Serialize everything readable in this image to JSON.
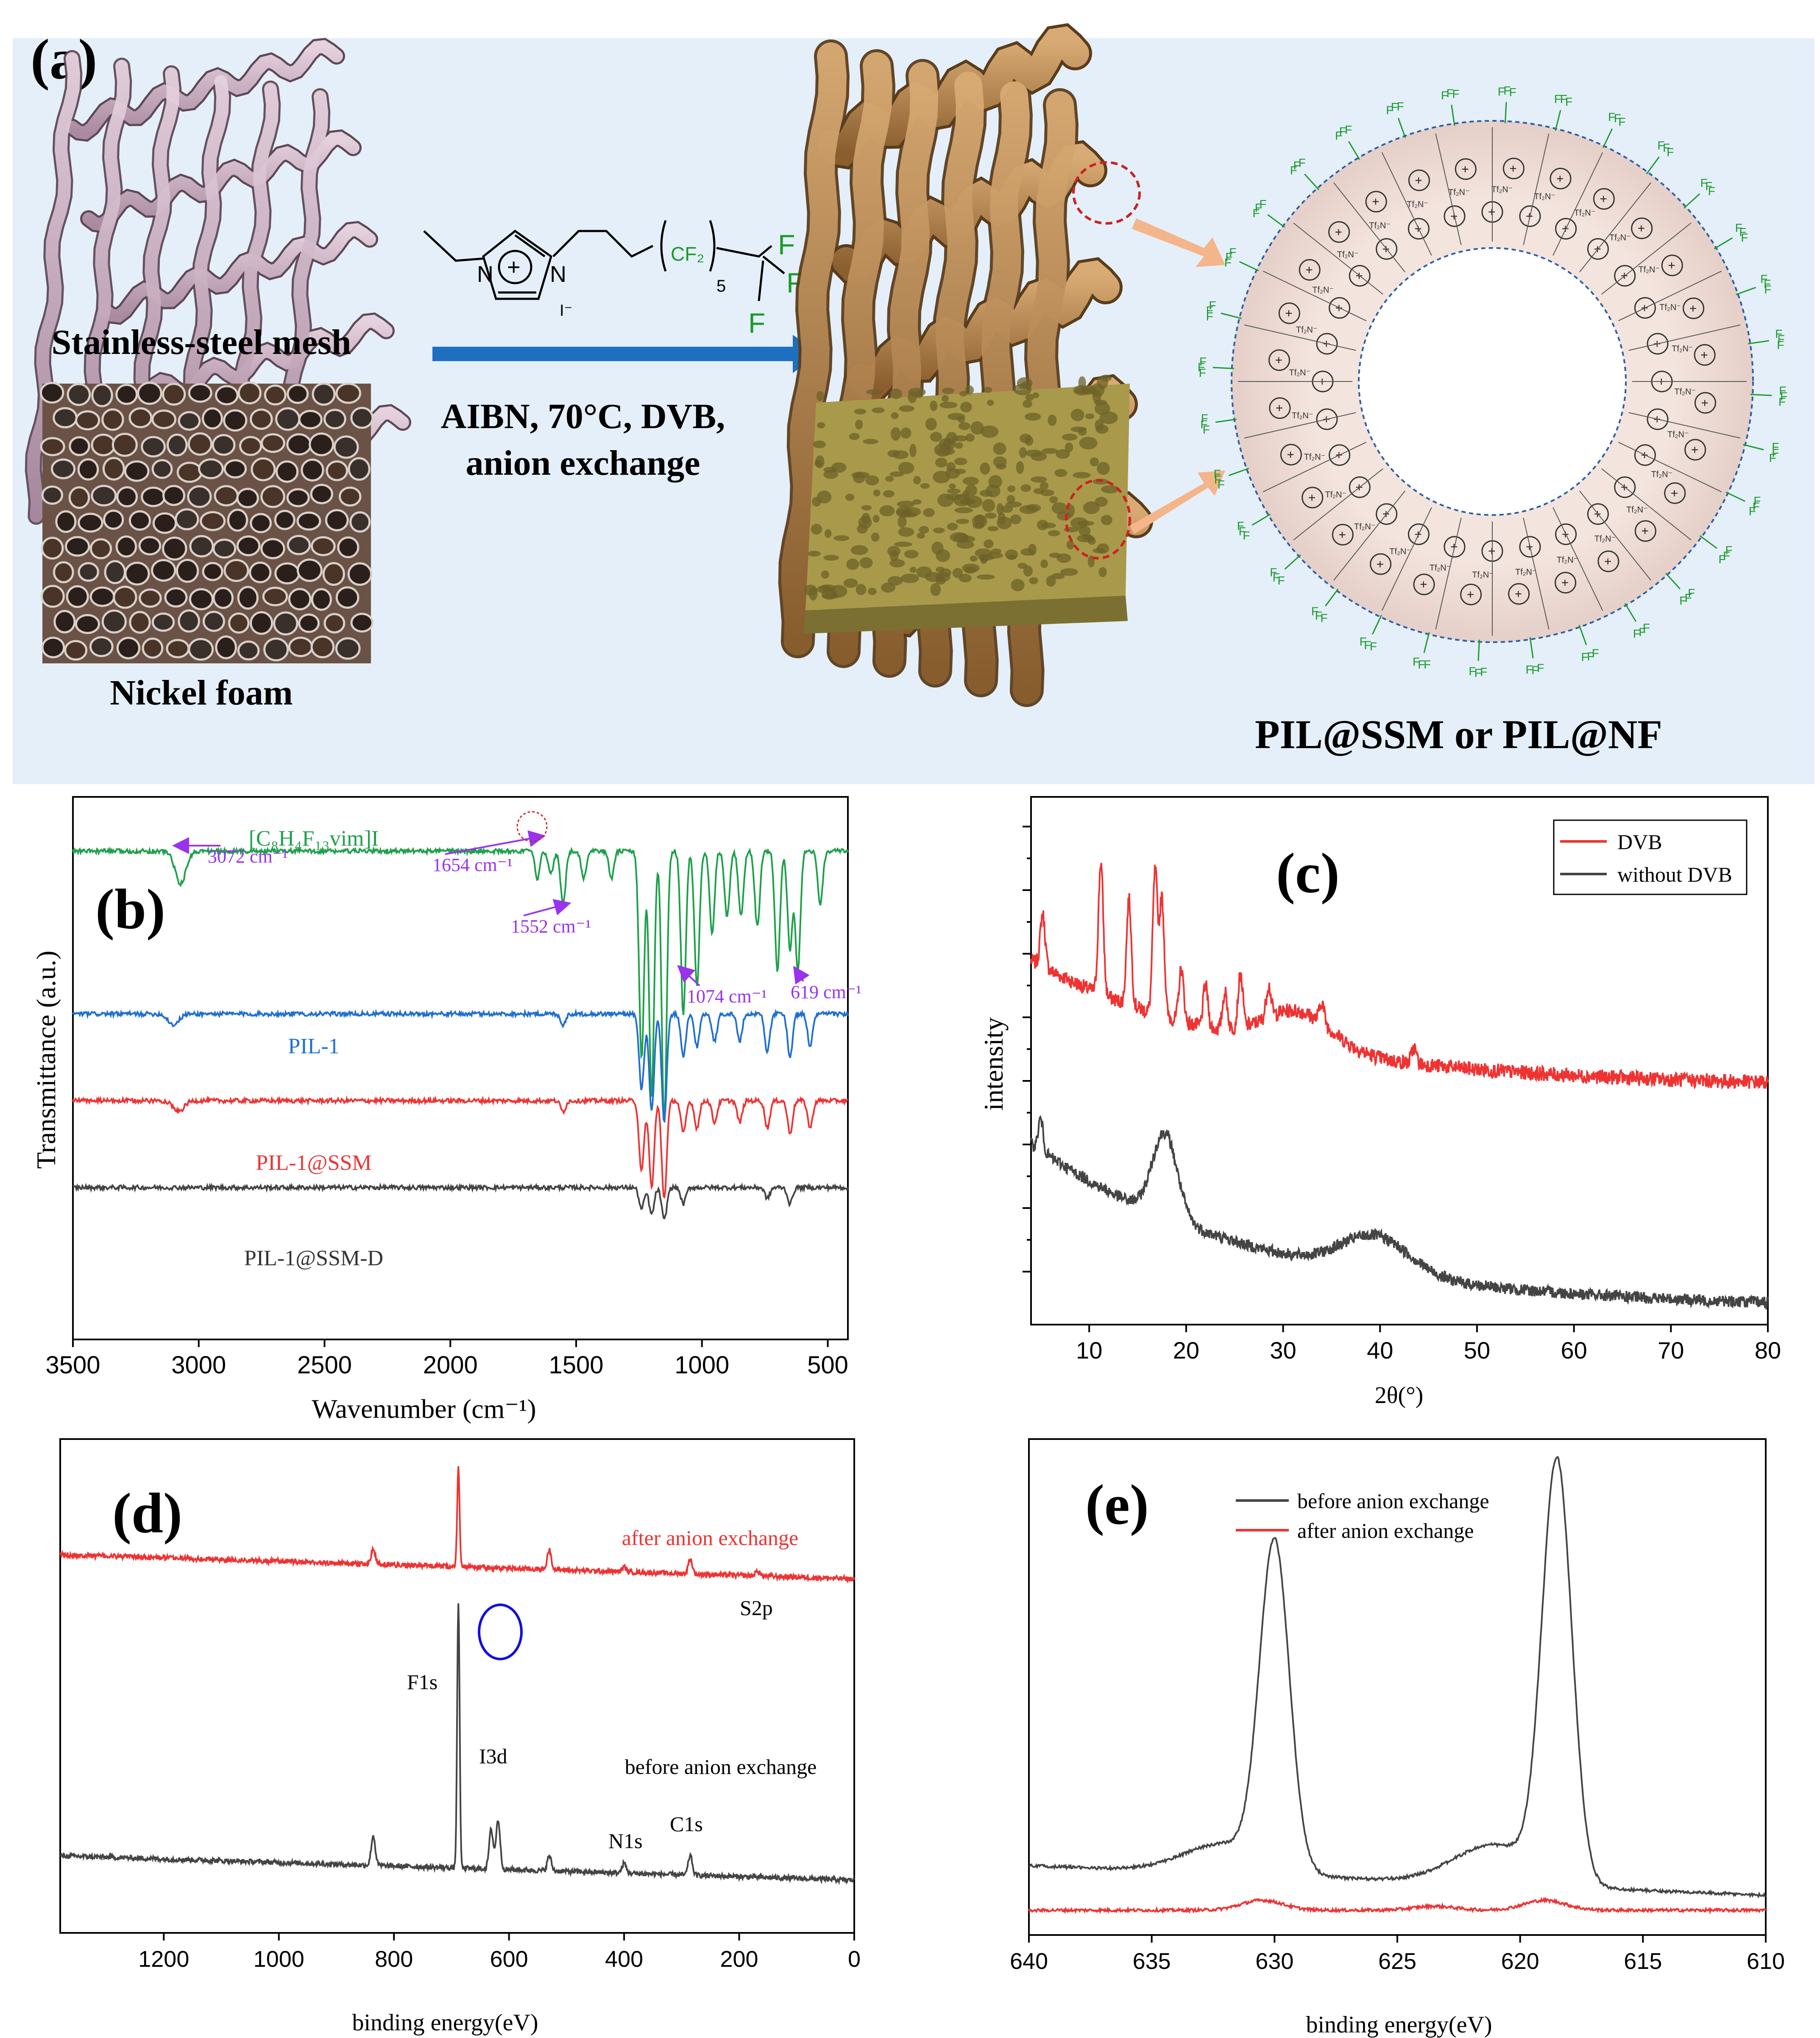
{
  "panel_a": {
    "label": "(a)",
    "mesh_label": "Stainless-steel mesh",
    "foam_label": "Nickel foam",
    "conditions_line1": "AIBN, 70°C, DVB,",
    "conditions_line2": "anion exchange",
    "product_label": "PIL@SSM or PIL@NF",
    "monomer": {
      "cation": "+",
      "n_label": "N",
      "anion": "I⁻",
      "cf2": "CF₂",
      "sub5": "5",
      "f": "F"
    },
    "shell_text": {
      "cation": "+",
      "anion": "Tf₂N⁻",
      "fluorine": "F"
    },
    "colors": {
      "arrow_blue": "#1f6fc1",
      "arrow_orange": "#f5b58a",
      "shell_fill": "#ead6d0",
      "fluorine": "#1a9a2a",
      "mesh_pink": "#c9a9bd",
      "mesh_gold": "#b8864e",
      "foam_olive": "#a89a4a",
      "bg_blue": "#e4eff9"
    }
  },
  "chart_data": [
    {
      "panel": "(b)",
      "type": "line",
      "title": "",
      "xlabel": "Wavenumber (cm⁻¹)",
      "ylabel": "Transmittance (a.u.)",
      "xlim": [
        3500,
        420
      ],
      "xticks": [
        3500,
        3000,
        2500,
        2000,
        1500,
        1000,
        500
      ],
      "x_reversed": true,
      "series": [
        {
          "name": "[C₈H₄F₁₃vim]I",
          "color": "#1ea04a",
          "baseline": 0.9,
          "peaks": [
            [
              3072,
              0.06
            ],
            [
              1654,
              0.05
            ],
            [
              1600,
              0.04
            ],
            [
              1552,
              0.1
            ],
            [
              1470,
              0.05
            ],
            [
              1360,
              0.05
            ],
            [
              1240,
              0.38
            ],
            [
              1200,
              0.45
            ],
            [
              1150,
              0.5
            ],
            [
              1074,
              0.3
            ],
            [
              1020,
              0.25
            ],
            [
              960,
              0.15
            ],
            [
              900,
              0.12
            ],
            [
              845,
              0.12
            ],
            [
              780,
              0.14
            ],
            [
              700,
              0.22
            ],
            [
              650,
              0.18
            ],
            [
              619,
              0.22
            ],
            [
              530,
              0.1
            ]
          ]
        },
        {
          "name": "PIL-1",
          "color": "#1f6fd1",
          "baseline": 0.6,
          "peaks": [
            [
              3100,
              0.02
            ],
            [
              1552,
              0.02
            ],
            [
              1240,
              0.14
            ],
            [
              1200,
              0.18
            ],
            [
              1150,
              0.2
            ],
            [
              1074,
              0.08
            ],
            [
              1020,
              0.06
            ],
            [
              950,
              0.05
            ],
            [
              850,
              0.05
            ],
            [
              740,
              0.07
            ],
            [
              650,
              0.08
            ],
            [
              570,
              0.06
            ]
          ]
        },
        {
          "name": "PIL-1@SSM",
          "color": "#ee3333",
          "baseline": 0.44,
          "peaks": [
            [
              3080,
              0.02
            ],
            [
              1552,
              0.02
            ],
            [
              1240,
              0.13
            ],
            [
              1200,
              0.16
            ],
            [
              1150,
              0.18
            ],
            [
              1074,
              0.06
            ],
            [
              1020,
              0.05
            ],
            [
              950,
              0.04
            ],
            [
              850,
              0.04
            ],
            [
              740,
              0.05
            ],
            [
              650,
              0.06
            ],
            [
              570,
              0.05
            ]
          ]
        },
        {
          "name": "PIL-1@SSM-D",
          "color": "#444444",
          "baseline": 0.28,
          "peaks": [
            [
              1240,
              0.04
            ],
            [
              1200,
              0.05
            ],
            [
              1150,
              0.06
            ],
            [
              1074,
              0.03
            ],
            [
              740,
              0.02
            ],
            [
              650,
              0.03
            ]
          ]
        }
      ],
      "annotations": [
        "3072 cm⁻¹",
        "1654 cm⁻¹",
        "1552 cm⁻¹",
        "1074 cm⁻¹",
        "619 cm⁻¹"
      ],
      "series_labels": [
        "PIL-1",
        "PIL-1@SSM",
        "PIL-1@SSM-D"
      ],
      "compound_label": "[C₈H₄F₁₃vim]I"
    },
    {
      "panel": "(c)",
      "type": "line",
      "title": "",
      "xlabel": "2θ(°)",
      "ylabel": "intensity",
      "xlim": [
        4,
        80
      ],
      "xticks": [
        10,
        20,
        30,
        40,
        50,
        60,
        70,
        80
      ],
      "legend": [
        "DVB",
        "without DVB"
      ],
      "legend_position": "top-right",
      "series": [
        {
          "name": "DVB",
          "color": "#ee3333",
          "base_start": 0.68,
          "base_end": 0.45,
          "peaks": [
            [
              5.2,
              0.1
            ],
            [
              11.2,
              0.25
            ],
            [
              14.1,
              0.2
            ],
            [
              16.8,
              0.27
            ],
            [
              17.5,
              0.22
            ],
            [
              19.5,
              0.1
            ],
            [
              22.0,
              0.08
            ],
            [
              24.0,
              0.07
            ],
            [
              25.6,
              0.1
            ],
            [
              28.5,
              0.06
            ],
            [
              31.5,
              0.07
            ],
            [
              34.0,
              0.04
            ],
            [
              43.5,
              0.03
            ]
          ]
        },
        {
          "name": "without DVB",
          "color": "#444444",
          "base_start": 0.33,
          "base_end": 0.03,
          "peaks": [
            [
              5.0,
              0.06
            ],
            [
              17.8,
              0.16
            ],
            [
              39.5,
              0.07
            ]
          ]
        }
      ]
    },
    {
      "panel": "(d)",
      "type": "line",
      "title": "",
      "xlabel": "binding energy(eV)",
      "ylabel": "",
      "xlim": [
        1360,
        0
      ],
      "xticks": [
        1200,
        1000,
        800,
        600,
        400,
        200,
        0
      ],
      "x_reversed": true,
      "series": [
        {
          "name": "after anion exchange",
          "color": "#ee3333",
          "baseline": 0.74,
          "peaks": [
            [
              836,
              0.03
            ],
            [
              688,
              0.2
            ],
            [
              530,
              0.04
            ],
            [
              400,
              0.01
            ],
            [
              285,
              0.03
            ],
            [
              168,
              0.01
            ]
          ]
        },
        {
          "name": "before anion exchange",
          "color": "#444444",
          "baseline": 0.13,
          "peaks": [
            [
              836,
              0.06
            ],
            [
              688,
              0.54
            ],
            [
              631,
              0.08
            ],
            [
              619,
              0.1
            ],
            [
              530,
              0.03
            ],
            [
              400,
              0.02
            ],
            [
              285,
              0.04
            ]
          ]
        }
      ],
      "peak_labels": [
        "F1s",
        "I3d",
        "N1s",
        "C1s",
        "S2p"
      ],
      "series_labels": [
        "after anion exchange",
        "before anion exchange"
      ]
    },
    {
      "panel": "(e)",
      "type": "line",
      "title": "",
      "xlabel": "binding energy(eV)",
      "ylabel": "",
      "xlim": [
        640,
        610
      ],
      "xticks": [
        640,
        635,
        630,
        625,
        620,
        615,
        610
      ],
      "x_reversed": true,
      "legend": [
        "before anion exchange",
        "after anion exchange"
      ],
      "legend_position": "top-left",
      "series": [
        {
          "name": "before anion exchange",
          "color": "#444444",
          "baseline": 0.08,
          "peaks": [
            [
              630.0,
              0.65
            ],
            [
              618.5,
              0.84
            ],
            [
              621.0,
              0.08
            ],
            [
              632.0,
              0.06
            ]
          ]
        },
        {
          "name": "after anion exchange",
          "color": "#ee3333",
          "baseline": 0.05,
          "peaks": [
            [
              630.5,
              0.02
            ],
            [
              619.0,
              0.02
            ],
            [
              623.5,
              0.008
            ]
          ]
        }
      ]
    }
  ]
}
